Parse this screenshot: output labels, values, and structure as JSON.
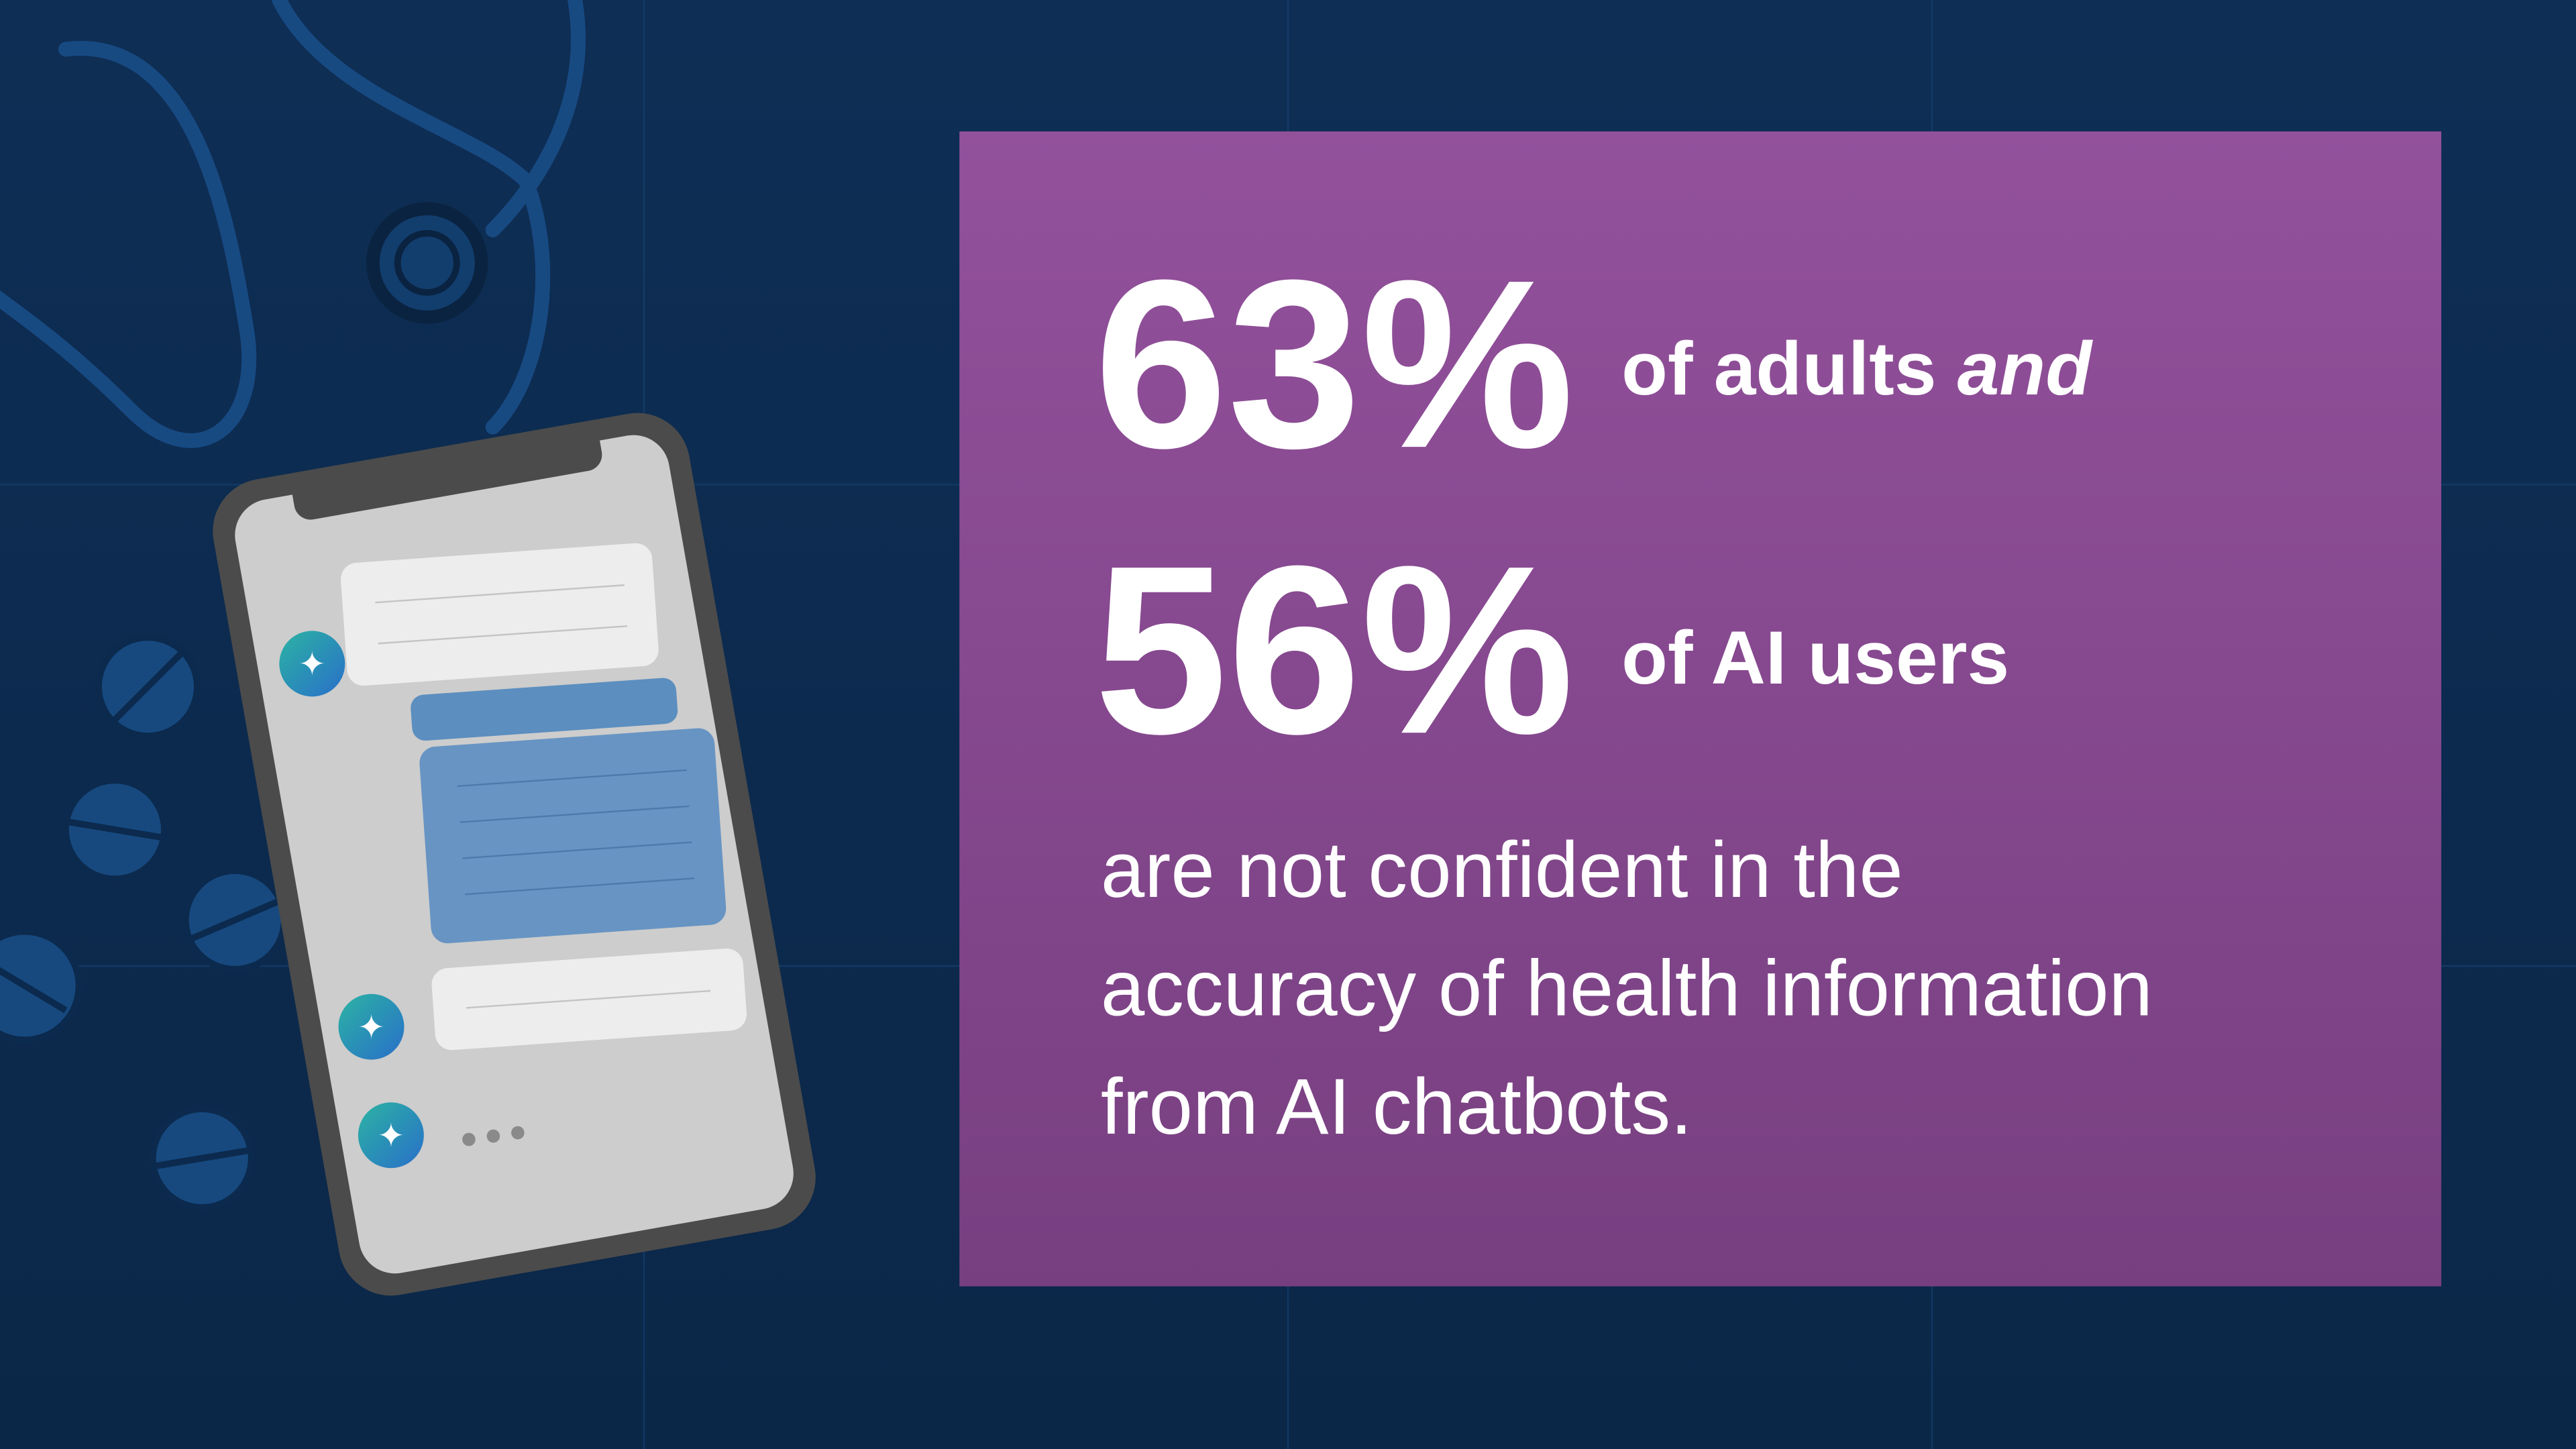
{
  "stats": [
    {
      "figure": "63%",
      "text": "of adults",
      "emphasis": "and"
    },
    {
      "figure": "56%",
      "text": "of AI users"
    }
  ],
  "body": [
    "are not confident in the",
    "accuracy of health information",
    "from AI chatbots."
  ]
}
